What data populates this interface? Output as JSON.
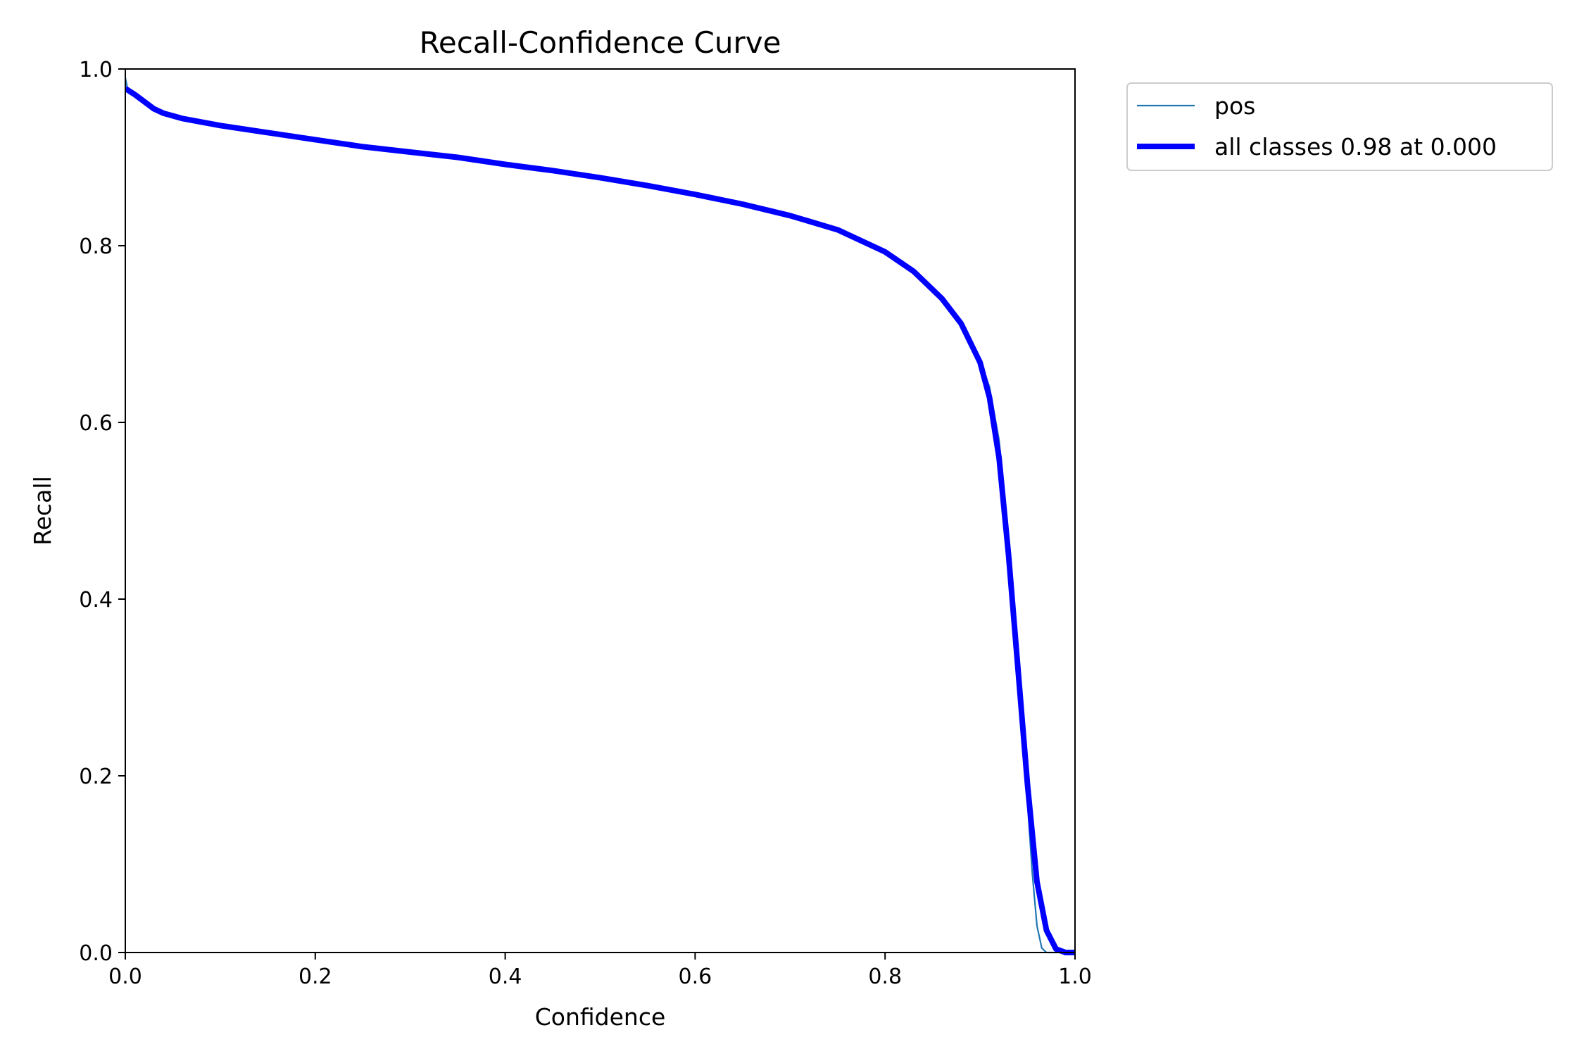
{
  "chart_data": {
    "type": "line",
    "title": "Recall-Confidence Curve",
    "xlabel": "Confidence",
    "ylabel": "Recall",
    "xlim": [
      0.0,
      1.0
    ],
    "ylim": [
      0.0,
      1.0
    ],
    "xticks": [
      "0.0",
      "0.2",
      "0.4",
      "0.6",
      "0.8",
      "1.0"
    ],
    "yticks": [
      "0.0",
      "0.2",
      "0.4",
      "0.6",
      "0.8",
      "1.0"
    ],
    "grid": false,
    "legend_position": "outside-top-right",
    "series": [
      {
        "name": "pos",
        "color": "#1f77b4",
        "style": "thin",
        "x": [
          0.0,
          0.003,
          0.01,
          0.02,
          0.03,
          0.04,
          0.06,
          0.08,
          0.1,
          0.15,
          0.2,
          0.25,
          0.3,
          0.35,
          0.4,
          0.45,
          0.5,
          0.55,
          0.6,
          0.65,
          0.7,
          0.75,
          0.8,
          0.83,
          0.86,
          0.88,
          0.9,
          0.91,
          0.92,
          0.93,
          0.94,
          0.95,
          0.955,
          0.96,
          0.965,
          0.97,
          0.98,
          0.99,
          1.0
        ],
        "y": [
          0.99,
          0.975,
          0.97,
          0.962,
          0.955,
          0.95,
          0.944,
          0.94,
          0.936,
          0.928,
          0.92,
          0.912,
          0.906,
          0.9,
          0.892,
          0.885,
          0.877,
          0.868,
          0.858,
          0.847,
          0.834,
          0.818,
          0.793,
          0.771,
          0.74,
          0.712,
          0.67,
          0.64,
          0.58,
          0.47,
          0.33,
          0.17,
          0.09,
          0.03,
          0.005,
          0.0,
          0.0,
          0.0,
          0.0
        ]
      },
      {
        "name": "all classes 0.98 at 0.000",
        "color": "#0000ff",
        "style": "thick",
        "x": [
          0.0,
          0.01,
          0.02,
          0.03,
          0.04,
          0.06,
          0.08,
          0.1,
          0.15,
          0.2,
          0.25,
          0.3,
          0.35,
          0.4,
          0.45,
          0.5,
          0.55,
          0.6,
          0.65,
          0.7,
          0.75,
          0.8,
          0.83,
          0.86,
          0.88,
          0.9,
          0.91,
          0.92,
          0.93,
          0.94,
          0.95,
          0.96,
          0.97,
          0.98,
          0.99,
          1.0
        ],
        "y": [
          0.978,
          0.971,
          0.963,
          0.955,
          0.95,
          0.944,
          0.94,
          0.936,
          0.928,
          0.92,
          0.912,
          0.906,
          0.9,
          0.892,
          0.885,
          0.877,
          0.868,
          0.858,
          0.847,
          0.834,
          0.818,
          0.793,
          0.771,
          0.74,
          0.712,
          0.668,
          0.628,
          0.56,
          0.45,
          0.32,
          0.19,
          0.08,
          0.025,
          0.004,
          0.0,
          0.0
        ]
      }
    ]
  }
}
